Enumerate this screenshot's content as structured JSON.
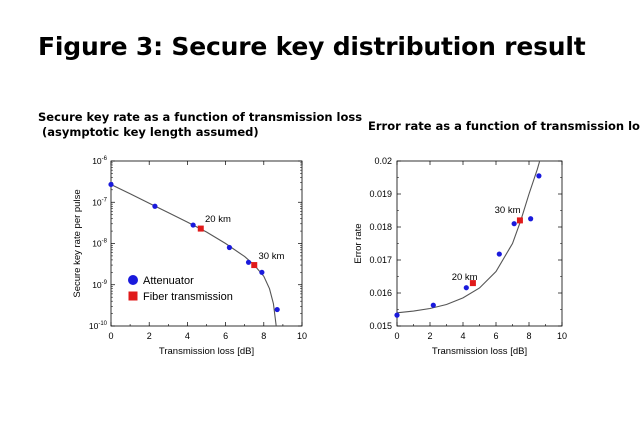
{
  "page": {
    "title": "Figure 3: Secure key distribution result"
  },
  "chart_data": [
    {
      "type": "scatter",
      "title_lines": [
        "Secure key rate as a function of transmission loss",
        " (asymptotic key length assumed)"
      ],
      "xlabel": "Transmission loss [dB]",
      "ylabel": "Secure key rate per pulse",
      "xlim": [
        0,
        10
      ],
      "ylim": [
        1e-10,
        1e-06
      ],
      "yscale": "log",
      "xticks": [
        0,
        2,
        4,
        6,
        8,
        10
      ],
      "yticks": [
        {
          "value": 1e-06,
          "base": "10",
          "exp": "-6"
        },
        {
          "value": 1e-07,
          "base": "10",
          "exp": "-7"
        },
        {
          "value": 1e-08,
          "base": "10",
          "exp": "-8"
        },
        {
          "value": 1e-09,
          "base": "10",
          "exp": "-9"
        },
        {
          "value": 1e-10,
          "base": "10",
          "exp": "-10"
        }
      ],
      "grid": false,
      "legend_position": "bottom-left",
      "colors": {
        "attenuator": "#1a1adc",
        "fiber": "#e01a1a",
        "curve": "#555555"
      },
      "series": [
        {
          "name": "Attenuator",
          "marker": "circle",
          "color": "#1a1adc",
          "points": [
            {
              "x": 0.0,
              "y": 2.7e-07
            },
            {
              "x": 2.3,
              "y": 8e-08
            },
            {
              "x": 4.3,
              "y": 2.8e-08
            },
            {
              "x": 6.2,
              "y": 8e-09
            },
            {
              "x": 7.2,
              "y": 3.5e-09
            },
            {
              "x": 7.9,
              "y": 2e-09
            },
            {
              "x": 8.7,
              "y": 2.5e-10
            }
          ]
        },
        {
          "name": "Fiber transmission",
          "marker": "square",
          "color": "#e01a1a",
          "points": [
            {
              "x": 4.7,
              "y": 2.3e-08
            },
            {
              "x": 7.5,
              "y": 3e-09
            }
          ]
        }
      ],
      "curve": [
        {
          "x": 0,
          "y": 2.7e-07
        },
        {
          "x": 1,
          "y": 1.6e-07
        },
        {
          "x": 2,
          "y": 9.5e-08
        },
        {
          "x": 3,
          "y": 5.6e-08
        },
        {
          "x": 4,
          "y": 3.3e-08
        },
        {
          "x": 5,
          "y": 1.9e-08
        },
        {
          "x": 6,
          "y": 1e-08
        },
        {
          "x": 7,
          "y": 4.8e-09
        },
        {
          "x": 7.5,
          "y": 3e-09
        },
        {
          "x": 8,
          "y": 1.6e-09
        },
        {
          "x": 8.3,
          "y": 8e-10
        },
        {
          "x": 8.5,
          "y": 3.5e-10
        },
        {
          "x": 8.6,
          "y": 1.5e-10
        },
        {
          "x": 8.65,
          "y": 1e-10
        }
      ],
      "annotations": [
        {
          "text": "20 km",
          "x": 5.6,
          "y": 3.3e-08
        },
        {
          "text": "30 km",
          "x": 8.4,
          "y": 4.2e-09
        }
      ]
    },
    {
      "type": "scatter",
      "title": "Error rate as a function of transmission loss",
      "xlabel": "Transmission loss [dB]",
      "ylabel": "Error rate",
      "xlim": [
        0,
        10
      ],
      "ylim": [
        0.015,
        0.02
      ],
      "xticks": [
        0,
        2,
        4,
        6,
        8,
        10
      ],
      "yticks": [
        "0.015",
        "0.016",
        "0.017",
        "0.018",
        "0.019",
        "0.02"
      ],
      "grid": false,
      "colors": {
        "attenuator": "#1a1adc",
        "fiber": "#e01a1a",
        "curve": "#555555"
      },
      "series": [
        {
          "name": "Attenuator",
          "marker": "circle",
          "color": "#1a1adc",
          "points": [
            {
              "x": 0.0,
              "y": 0.01533
            },
            {
              "x": 2.2,
              "y": 0.01563
            },
            {
              "x": 4.2,
              "y": 0.01616
            },
            {
              "x": 6.2,
              "y": 0.01718
            },
            {
              "x": 7.1,
              "y": 0.0181
            },
            {
              "x": 8.1,
              "y": 0.01825
            },
            {
              "x": 8.6,
              "y": 0.01955
            }
          ]
        },
        {
          "name": "Fiber transmission",
          "marker": "square",
          "color": "#e01a1a",
          "points": [
            {
              "x": 4.6,
              "y": 0.0163
            },
            {
              "x": 7.45,
              "y": 0.0182
            }
          ]
        }
      ],
      "curve": [
        {
          "x": 0,
          "y": 0.0154
        },
        {
          "x": 1,
          "y": 0.01545
        },
        {
          "x": 2,
          "y": 0.01553
        },
        {
          "x": 3,
          "y": 0.01565
        },
        {
          "x": 4,
          "y": 0.01585
        },
        {
          "x": 5,
          "y": 0.01615
        },
        {
          "x": 6,
          "y": 0.01665
        },
        {
          "x": 7,
          "y": 0.0175
        },
        {
          "x": 7.5,
          "y": 0.0182
        },
        {
          "x": 8,
          "y": 0.019
        },
        {
          "x": 8.5,
          "y": 0.01975
        },
        {
          "x": 8.65,
          "y": 0.02
        }
      ],
      "annotations": [
        {
          "text": "20 km",
          "x": 4.1,
          "y": 0.0164
        },
        {
          "text": "30 km",
          "x": 6.7,
          "y": 0.01842
        }
      ]
    }
  ]
}
